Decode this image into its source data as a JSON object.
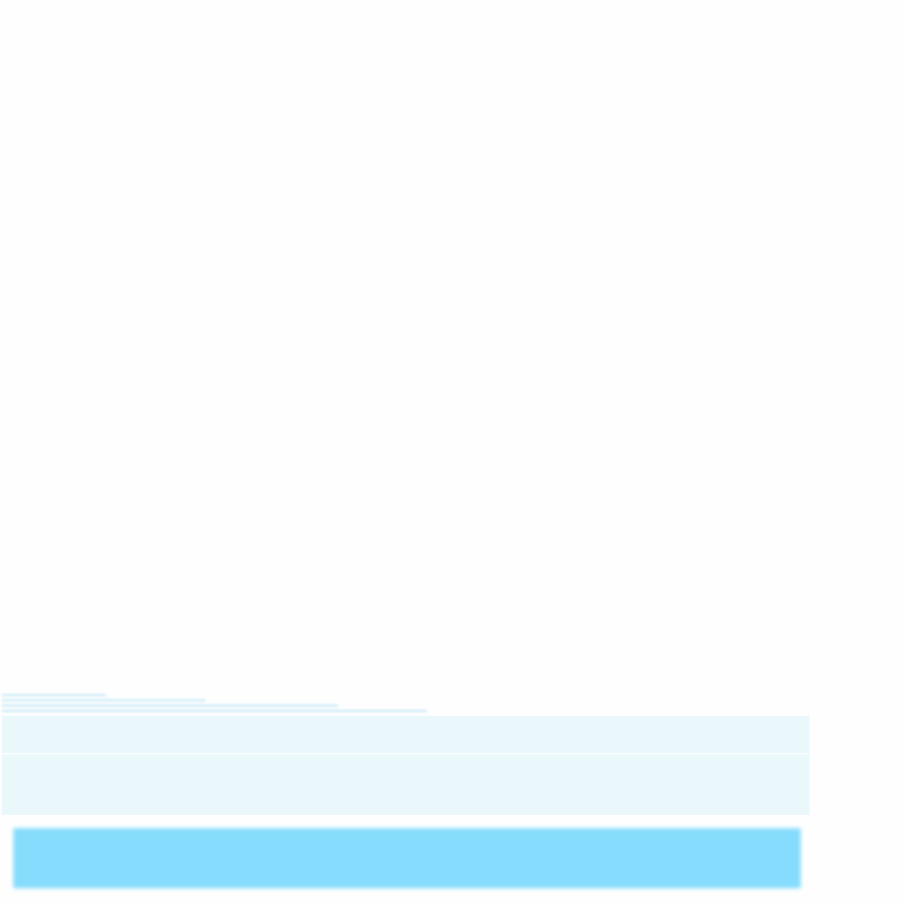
{
  "page": {
    "background_color": "#fefefe"
  },
  "faded_text": {
    "legible": false,
    "color": "#d3eef8"
  },
  "panel": {
    "top_section_color": "#eaf8fc",
    "bottom_section_color": "#eaf8fc",
    "divider_color": "#f6fcfe"
  },
  "primary_button": {
    "label": "",
    "color": "#86dcfc"
  },
  "corner_mark": {
    "text": ""
  }
}
